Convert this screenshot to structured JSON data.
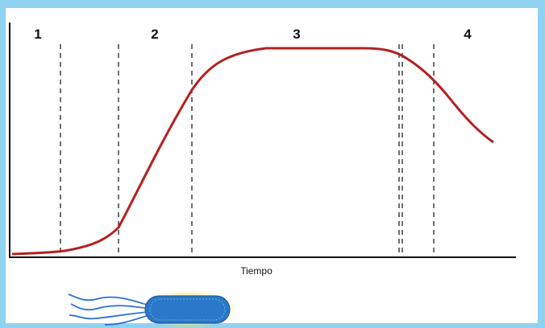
{
  "phases": [
    "1",
    "2",
    "3",
    "4"
  ],
  "x_axis_label": "Tiempo"
}
